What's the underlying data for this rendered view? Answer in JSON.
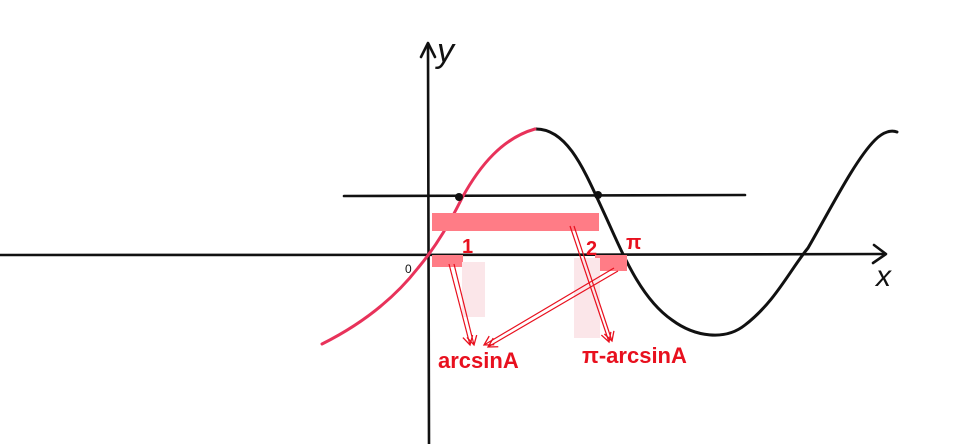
{
  "axes": {
    "y_label": "y",
    "x_label": "x",
    "origin_label": "0"
  },
  "labels": {
    "root1": "1",
    "root2": "2",
    "pi": "π",
    "arcsin": "arcsinA",
    "pi_minus_arcsin": "π-arcsinA"
  },
  "colors": {
    "ink": "#111111",
    "curve_highlight": "#e8325a",
    "label": "#e8101e",
    "highlight_box": "#ff7c86",
    "faint_box": "#fbe6e9"
  }
}
